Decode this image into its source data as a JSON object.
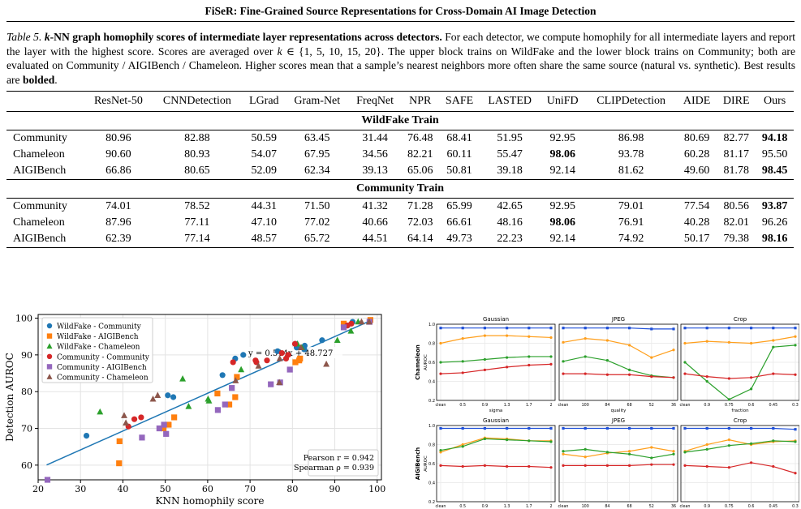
{
  "header": {
    "title": "FiSeR: Fine-Grained Source Representations for Cross-Domain AI Image Detection"
  },
  "caption": {
    "label": "Table 5.",
    "title_k": "k",
    "title_rest": "-NN graph homophily scores of intermediate layer representations across detectors.",
    "text1": " For each detector, we compute homophily for all intermediate layers and report the layer with the highest score. Scores are averaged over ",
    "kvar": "k",
    "kset": " ∈ {1, 5, 10, 15, 20}",
    "text2": ". The upper block trains on WildFake and the lower block trains on Community; both are evaluated on Community / AIGIBench / Chameleon. Higher scores mean that a sample’s nearest neighbors more often share the same source (natural vs. synthetic). Best results are ",
    "bolded": "bolded",
    "end": "."
  },
  "table": {
    "columns": [
      "ResNet-50",
      "CNNDetection",
      "LGrad",
      "Gram-Net",
      "FreqNet",
      "NPR",
      "SAFE",
      "LASTED",
      "UniFD",
      "CLIPDetection",
      "AIDE",
      "DIRE",
      "Ours"
    ],
    "blocks": [
      {
        "title": "WildFake Train",
        "rows": [
          {
            "label": "Community",
            "values": [
              "80.96",
              "82.88",
              "50.59",
              "63.45",
              "31.44",
              "76.48",
              "68.41",
              "51.95",
              "92.95",
              "86.98",
              "80.69",
              "82.77",
              "94.18"
            ],
            "best": [
              12
            ]
          },
          {
            "label": "Chameleon",
            "values": [
              "90.60",
              "80.93",
              "54.07",
              "67.95",
              "34.56",
              "82.21",
              "60.11",
              "55.47",
              "98.06",
              "93.78",
              "60.28",
              "81.17",
              "95.50"
            ],
            "best": [
              8
            ]
          },
          {
            "label": "AIGIBench",
            "values": [
              "66.86",
              "80.65",
              "52.09",
              "62.34",
              "39.13",
              "65.06",
              "50.81",
              "39.18",
              "92.14",
              "81.62",
              "49.60",
              "81.78",
              "98.45"
            ],
            "best": [
              12
            ]
          }
        ]
      },
      {
        "title": "Community Train",
        "rows": [
          {
            "label": "Community",
            "values": [
              "74.01",
              "78.52",
              "44.31",
              "71.50",
              "41.32",
              "71.28",
              "65.99",
              "42.65",
              "92.95",
              "79.01",
              "77.54",
              "80.56",
              "93.87"
            ],
            "best": [
              12
            ]
          },
          {
            "label": "Chameleon",
            "values": [
              "87.96",
              "77.11",
              "47.10",
              "77.02",
              "40.66",
              "72.03",
              "66.61",
              "48.16",
              "98.06",
              "76.91",
              "40.28",
              "82.01",
              "96.26"
            ],
            "best": [
              8
            ]
          },
          {
            "label": "AIGIBench",
            "values": [
              "62.39",
              "77.14",
              "48.57",
              "65.72",
              "44.51",
              "64.14",
              "49.73",
              "22.23",
              "92.14",
              "74.92",
              "50.17",
              "79.38",
              "98.16"
            ],
            "best": [
              12
            ]
          }
        ]
      }
    ]
  },
  "scatter": {
    "chart_data": {
      "type": "scatter",
      "xlabel": "KNN homophily score",
      "ylabel": "Detection AUROC",
      "xlim": [
        20,
        101
      ],
      "ylim": [
        56,
        101
      ],
      "xticks": [
        20,
        30,
        40,
        50,
        60,
        70,
        80,
        90,
        100
      ],
      "yticks": [
        60,
        70,
        80,
        90,
        100
      ],
      "grid": true,
      "legend": "top-left",
      "fit_label": "y = 0.514x + 48.727",
      "fit": {
        "slope": 0.514,
        "intercept": 48.727,
        "x_range": [
          22,
          98.5
        ]
      },
      "stats": [
        "Pearson r = 0.942",
        "Spearman ρ = 0.939"
      ],
      "series": [
        {
          "name": "WildFake - Community",
          "marker": "circle",
          "color": "#1f77b4",
          "x": [
            31.4,
            50.6,
            51.9,
            63.5,
            66.5,
            68.4,
            76.5,
            80.7,
            81.0,
            82.8,
            82.9,
            87.0,
            93.0,
            94.2
          ],
          "y": [
            68,
            79,
            78.5,
            84.5,
            89,
            90,
            91,
            93,
            92,
            91.5,
            92.5,
            94,
            98,
            99
          ]
        },
        {
          "name": "WildFake - AIGIBench",
          "marker": "square",
          "color": "#ff7f0e",
          "x": [
            39.1,
            39.2,
            49.6,
            50.8,
            52.1,
            62.3,
            65.1,
            66.5,
            66.9,
            80.7,
            81.6,
            81.8,
            92.1,
            98.4
          ],
          "y": [
            60.5,
            66.5,
            70,
            71,
            73,
            79.5,
            76.5,
            78.5,
            84,
            88,
            88.5,
            89,
            98.5,
            99.5
          ]
        },
        {
          "name": "WildFake - Chameleon",
          "marker": "triangle",
          "color": "#2ca02c",
          "x": [
            34.6,
            54.1,
            55.5,
            60.1,
            60.3,
            67.9,
            81.2,
            82.2,
            90.6,
            93.8,
            95.5,
            98.1
          ],
          "y": [
            74.5,
            83.5,
            76,
            78,
            77.5,
            86,
            93,
            92,
            94,
            96.5,
            99,
            99
          ]
        },
        {
          "name": "Community - Community",
          "marker": "circle",
          "color": "#d62728",
          "x": [
            41.3,
            42.7,
            44.3,
            65.99,
            71.3,
            71.5,
            74.0,
            77.5,
            78.5,
            79.0,
            80.6,
            92.95,
            93.9
          ],
          "y": [
            70.5,
            72.5,
            73,
            88,
            88.5,
            88,
            88.5,
            90.5,
            89,
            90,
            93,
            98,
            98.5
          ]
        },
        {
          "name": "Community - AIGIBench",
          "marker": "square",
          "color": "#9467bd",
          "x": [
            22.2,
            44.5,
            48.6,
            49.7,
            50.2,
            62.4,
            64.1,
            65.7,
            74.9,
            77.1,
            79.4,
            92.1,
            98.2
          ],
          "y": [
            56,
            67.5,
            70,
            71,
            68.5,
            75,
            76.5,
            81,
            82,
            82.5,
            86,
            97.5,
            99
          ]
        },
        {
          "name": "Community - Chameleon",
          "marker": "triangle",
          "color": "#8c564b",
          "x": [
            40.3,
            40.7,
            47.1,
            48.2,
            66.6,
            72.0,
            76.9,
            77.0,
            82.0,
            88.0,
            96.3,
            98.1
          ],
          "y": [
            73.5,
            71.5,
            78,
            79,
            83,
            87,
            82.5,
            89,
            92,
            87.5,
            99,
            99
          ]
        }
      ]
    }
  },
  "robustness": {
    "row_labels": [
      "Chameleon",
      "AIGIBench"
    ],
    "y_label": "AUROC",
    "yticks": [
      0.2,
      0.4,
      0.6,
      0.8,
      1.0
    ],
    "ylim": [
      0.2,
      1.0
    ],
    "panels": [
      {
        "title": "Gaussian",
        "xlabel": "sigma",
        "xticks": [
          "clean",
          "0.5",
          "0.9",
          "1.3",
          "1.7",
          "2"
        ]
      },
      {
        "title": "JPEG",
        "xlabel": "quality",
        "xticks": [
          "clean",
          "100",
          "84",
          "68",
          "52",
          "36"
        ]
      },
      {
        "title": "Crop",
        "xlabel": "fraction",
        "xticks": [
          "clean",
          "0.9",
          "0.75",
          "0.6",
          "0.45",
          "0.3"
        ]
      }
    ],
    "chart_data": [
      {
        "type": "line",
        "panel": "Chameleon / Gaussian",
        "x": [
          "clean",
          "0.5",
          "0.9",
          "1.3",
          "1.7",
          "2"
        ],
        "series": [
          {
            "color": "#1f4fd8",
            "marker": "square",
            "values": [
              0.96,
              0.96,
              0.96,
              0.96,
              0.96,
              0.96
            ]
          },
          {
            "color": "#ff9f1c",
            "marker": "circle",
            "values": [
              0.8,
              0.85,
              0.88,
              0.88,
              0.87,
              0.86
            ]
          },
          {
            "color": "#2ca02c",
            "marker": "circle",
            "values": [
              0.6,
              0.61,
              0.63,
              0.65,
              0.66,
              0.66
            ]
          },
          {
            "color": "#d62728",
            "marker": "circle",
            "values": [
              0.48,
              0.49,
              0.52,
              0.55,
              0.57,
              0.58
            ]
          }
        ]
      },
      {
        "type": "line",
        "panel": "Chameleon / JPEG",
        "x": [
          "clean",
          "100",
          "84",
          "68",
          "52",
          "36"
        ],
        "series": [
          {
            "color": "#1f4fd8",
            "marker": "square",
            "values": [
              0.96,
              0.96,
              0.96,
              0.96,
              0.95,
              0.95
            ]
          },
          {
            "color": "#ff9f1c",
            "marker": "circle",
            "values": [
              0.81,
              0.85,
              0.83,
              0.78,
              0.65,
              0.73
            ]
          },
          {
            "color": "#2ca02c",
            "marker": "circle",
            "values": [
              0.61,
              0.66,
              0.62,
              0.52,
              0.46,
              0.44
            ]
          },
          {
            "color": "#d62728",
            "marker": "circle",
            "values": [
              0.48,
              0.48,
              0.47,
              0.47,
              0.45,
              0.44
            ]
          }
        ]
      },
      {
        "type": "line",
        "panel": "Chameleon / Crop",
        "x": [
          "clean",
          "0.9",
          "0.75",
          "0.6",
          "0.45",
          "0.3"
        ],
        "series": [
          {
            "color": "#1f4fd8",
            "marker": "square",
            "values": [
              0.96,
              0.96,
              0.96,
              0.96,
              0.96,
              0.96
            ]
          },
          {
            "color": "#ff9f1c",
            "marker": "circle",
            "values": [
              0.8,
              0.82,
              0.81,
              0.8,
              0.83,
              0.87
            ]
          },
          {
            "color": "#2ca02c",
            "marker": "circle",
            "values": [
              0.6,
              0.4,
              0.21,
              0.32,
              0.76,
              0.78
            ]
          },
          {
            "color": "#d62728",
            "marker": "circle",
            "values": [
              0.48,
              0.45,
              0.43,
              0.44,
              0.48,
              0.47
            ]
          }
        ]
      },
      {
        "type": "line",
        "panel": "AIGIBench / Gaussian",
        "x": [
          "clean",
          "0.5",
          "0.9",
          "1.3",
          "1.7",
          "2"
        ],
        "series": [
          {
            "color": "#1f4fd8",
            "marker": "square",
            "values": [
              0.97,
              0.97,
              0.97,
              0.97,
              0.97,
              0.97
            ]
          },
          {
            "color": "#ff9f1c",
            "marker": "circle",
            "values": [
              0.72,
              0.8,
              0.87,
              0.86,
              0.84,
              0.84
            ]
          },
          {
            "color": "#2ca02c",
            "marker": "circle",
            "values": [
              0.74,
              0.78,
              0.86,
              0.85,
              0.84,
              0.83
            ]
          },
          {
            "color": "#d62728",
            "marker": "circle",
            "values": [
              0.58,
              0.57,
              0.58,
              0.57,
              0.57,
              0.56
            ]
          }
        ]
      },
      {
        "type": "line",
        "panel": "AIGIBench / JPEG",
        "x": [
          "clean",
          "100",
          "84",
          "68",
          "52",
          "36"
        ],
        "series": [
          {
            "color": "#1f4fd8",
            "marker": "square",
            "values": [
              0.97,
              0.97,
              0.97,
              0.97,
              0.97,
              0.97
            ]
          },
          {
            "color": "#ff9f1c",
            "marker": "circle",
            "values": [
              0.7,
              0.67,
              0.71,
              0.73,
              0.77,
              0.73
            ]
          },
          {
            "color": "#2ca02c",
            "marker": "circle",
            "values": [
              0.73,
              0.75,
              0.72,
              0.7,
              0.66,
              0.7
            ]
          },
          {
            "color": "#d62728",
            "marker": "circle",
            "values": [
              0.58,
              0.58,
              0.58,
              0.58,
              0.59,
              0.59
            ]
          }
        ]
      },
      {
        "type": "line",
        "panel": "AIGIBench / Crop",
        "x": [
          "clean",
          "0.9",
          "0.75",
          "0.6",
          "0.45",
          "0.3"
        ],
        "series": [
          {
            "color": "#1f4fd8",
            "marker": "square",
            "values": [
              0.97,
              0.97,
              0.97,
              0.97,
              0.97,
              0.96
            ]
          },
          {
            "color": "#ff9f1c",
            "marker": "circle",
            "values": [
              0.73,
              0.8,
              0.85,
              0.8,
              0.83,
              0.84
            ]
          },
          {
            "color": "#2ca02c",
            "marker": "circle",
            "values": [
              0.72,
              0.75,
              0.79,
              0.81,
              0.84,
              0.83
            ]
          },
          {
            "color": "#d62728",
            "marker": "circle",
            "values": [
              0.58,
              0.57,
              0.56,
              0.61,
              0.57,
              0.5
            ]
          }
        ]
      }
    ]
  }
}
